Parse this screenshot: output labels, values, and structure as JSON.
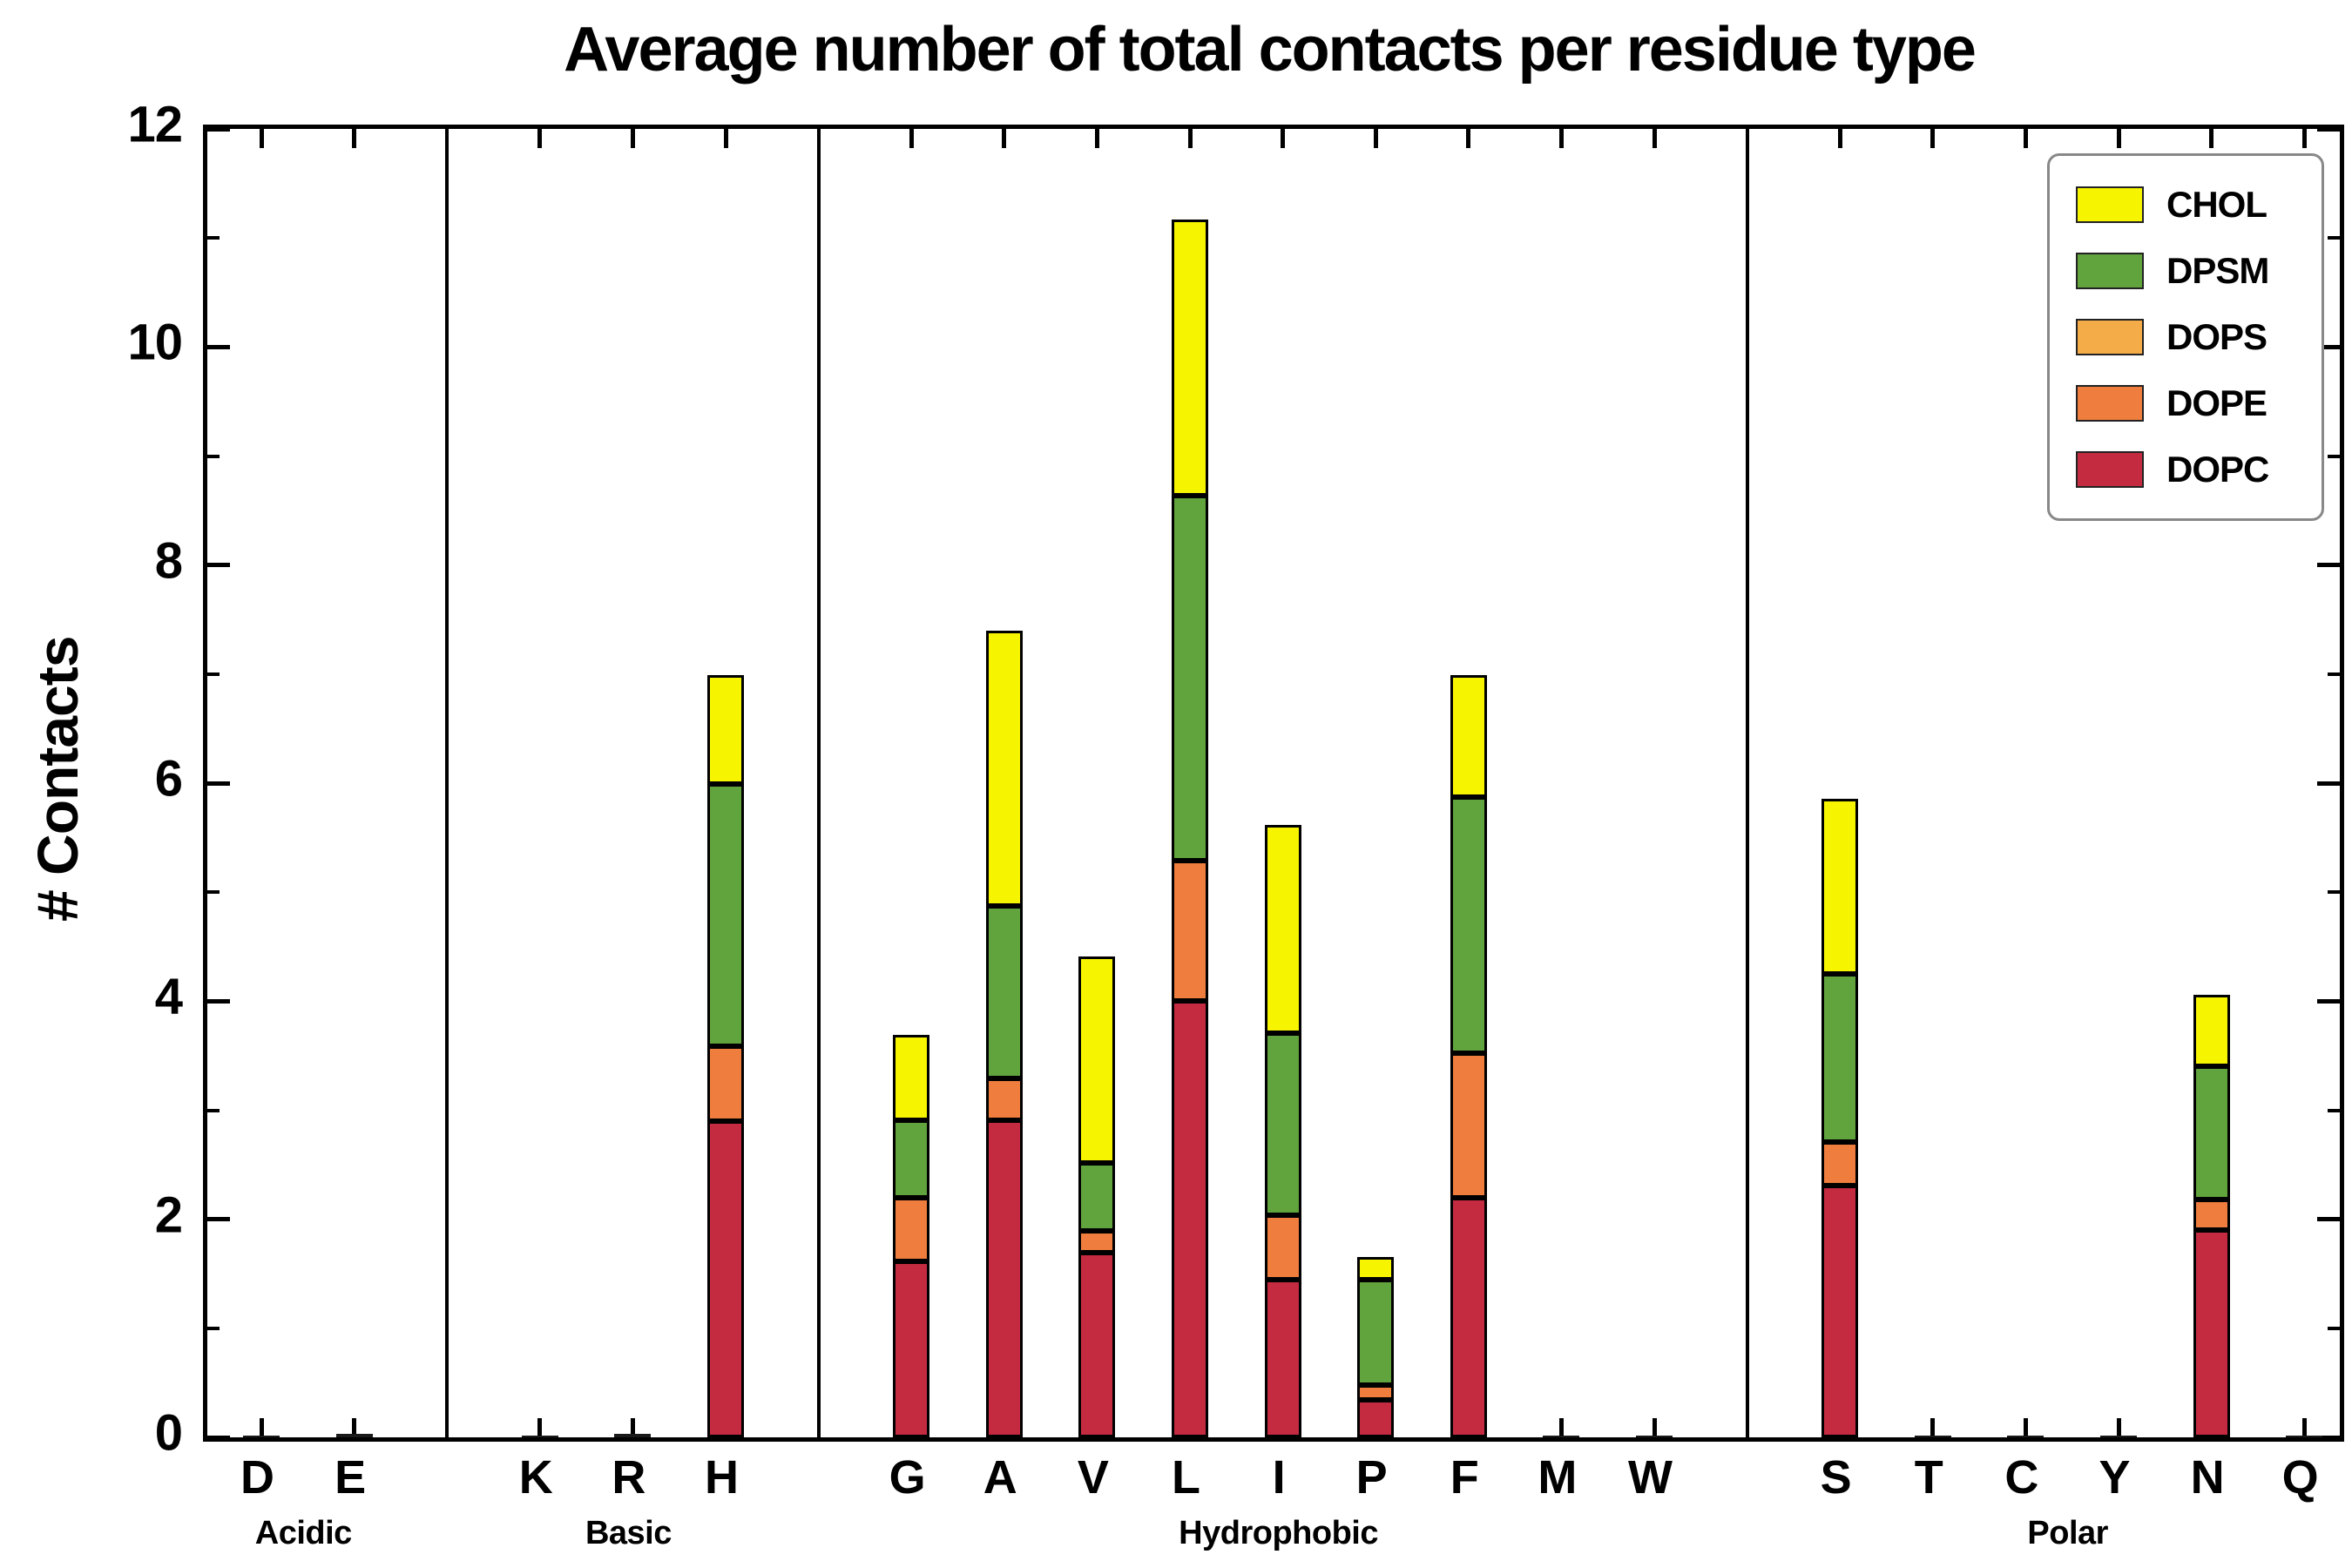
{
  "chart_data": {
    "type": "bar",
    "stacked": true,
    "title": "Average number of total contacts per residue type",
    "ylabel": "# Contacts",
    "xlabel": "",
    "ylim": [
      0,
      12
    ],
    "yticks": [
      0,
      2,
      4,
      6,
      8,
      10,
      12
    ],
    "grid": false,
    "legend_position": "upper right",
    "categories": [
      "D",
      "E",
      "K",
      "R",
      "H",
      "G",
      "A",
      "V",
      "L",
      "I",
      "P",
      "F",
      "M",
      "W",
      "S",
      "T",
      "C",
      "Y",
      "N",
      "Q"
    ],
    "groups": [
      {
        "label": "Acidic",
        "categories": [
          "D",
          "E"
        ]
      },
      {
        "label": "Basic",
        "categories": [
          "K",
          "R",
          "H"
        ]
      },
      {
        "label": "Hydrophobic",
        "categories": [
          "G",
          "A",
          "V",
          "L",
          "I",
          "P",
          "F",
          "M",
          "W"
        ]
      },
      {
        "label": "Polar",
        "categories": [
          "S",
          "T",
          "C",
          "Y",
          "N",
          "Q"
        ]
      }
    ],
    "series": [
      {
        "name": "DOPC",
        "color": "#c42b40",
        "values": [
          0.01,
          0.03,
          0.02,
          0.03,
          2.9,
          1.61,
          2.91,
          1.69,
          4.0,
          1.45,
          0.34,
          2.2,
          0.02,
          0.02,
          2.31,
          0.02,
          0.01,
          0.02,
          1.9,
          0.01
        ]
      },
      {
        "name": "DOPE",
        "color": "#ee7d3e",
        "values": [
          0,
          0,
          0,
          0,
          0.69,
          0.59,
          0.38,
          0.2,
          1.29,
          0.59,
          0.14,
          1.32,
          0,
          0,
          0.4,
          0,
          0,
          0,
          0.28,
          0
        ]
      },
      {
        "name": "DOPS",
        "color": "#f4ac49",
        "values": [
          0,
          0,
          0,
          0,
          0,
          0,
          0,
          0,
          0,
          0,
          0,
          0,
          0,
          0,
          0,
          0,
          0,
          0,
          0,
          0
        ]
      },
      {
        "name": "DPSM",
        "color": "#61a33c",
        "values": [
          0,
          0,
          0,
          0,
          2.4,
          0.71,
          1.58,
          0.63,
          3.35,
          1.67,
          0.97,
          2.35,
          0,
          0,
          1.54,
          0,
          0,
          0,
          1.22,
          0
        ]
      },
      {
        "name": "CHOL",
        "color": "#f7f400",
        "values": [
          0,
          0,
          0,
          0,
          1.0,
          0.78,
          2.53,
          1.89,
          2.53,
          1.91,
          0.2,
          1.12,
          0,
          0,
          1.61,
          0,
          0,
          0,
          0.66,
          0
        ]
      }
    ],
    "legend": [
      "CHOL",
      "DPSM",
      "DOPS",
      "DOPE",
      "DOPC"
    ]
  }
}
